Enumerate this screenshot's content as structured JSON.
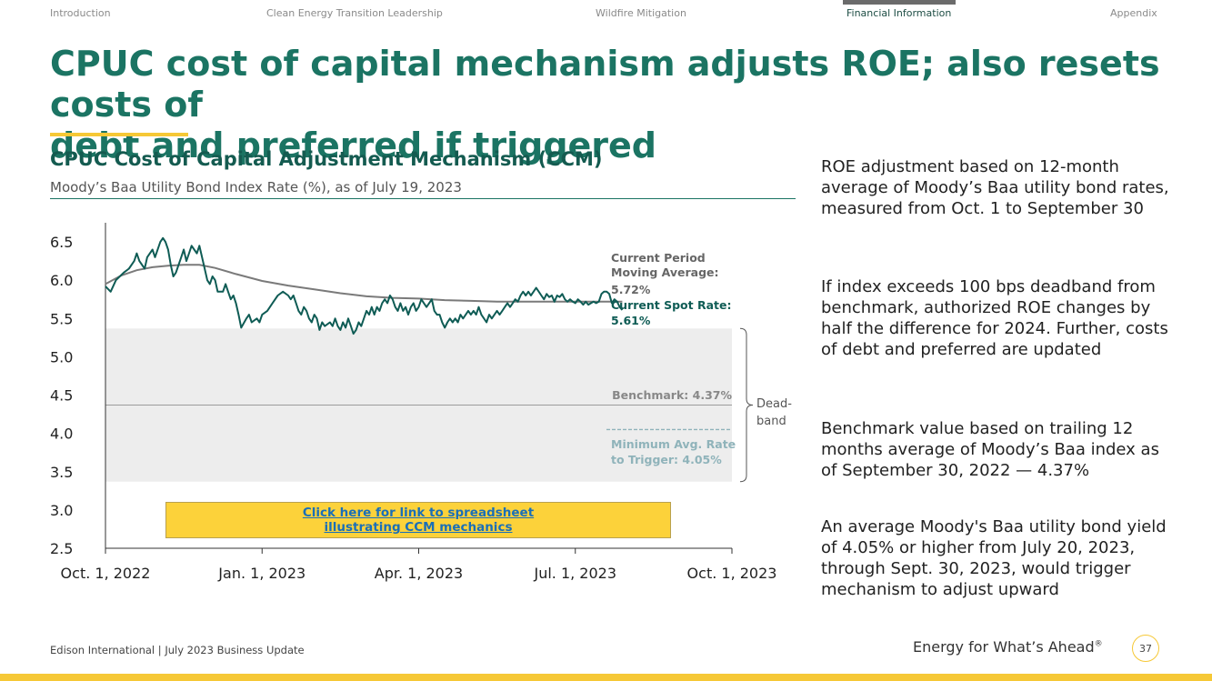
{
  "nav": {
    "items": [
      "Introduction",
      "Clean Energy Transition Leadership",
      "Wildfire Mitigation",
      "Financial Information",
      "Appendix"
    ],
    "active": "Financial Information"
  },
  "page": {
    "title_line1": "CPUC cost of capital mechanism adjusts ROE; also resets costs of",
    "title_line2": "debt and preferred if triggered"
  },
  "link_box": {
    "line1": "Click here for link to spreadsheet",
    "line2": "illustrating CCM mechanics"
  },
  "side_text": [
    "ROE adjustment based on 12-month average of Moody’s Baa utility bond rates, measured from Oct. 1 to September 30",
    "If index exceeds 100 bps deadband from benchmark, authorized ROE changes by half the difference for 2024. Further, costs of debt and preferred are updated",
    "Benchmark value based on trailing 12 months average of Moody’s Baa index as of September 30, 2022 — 4.37%",
    "An average Moody's Baa utility bond yield of 4.05% or higher from July 20, 2023, through Sept. 30, 2023, would trigger mechanism to adjust upward"
  ],
  "footer": {
    "left": "Edison International | July 2023 Business Update",
    "tagline": "Energy for What’s Ahead",
    "tagline_mark": "®",
    "page_number": "37"
  },
  "colors": {
    "title": "#1b7463",
    "spot": "#0f5c55",
    "moving_avg": "#7a7a7a",
    "deadband": "#ededed",
    "trigger": "#8fb3ba",
    "accent": "#f6c836"
  },
  "chart_data": {
    "type": "line",
    "title": "CPUC Cost of Capital Adjustment Mechanism (CCM)",
    "subtitle": "Moody’s Baa Utility Bond Index Rate (%), as of July 19, 2023",
    "ylim": [
      2.5,
      6.75
    ],
    "yticks": [
      "6.5",
      "6.0",
      "5.5",
      "5.0",
      "4.5",
      "4.0",
      "3.5",
      "3.0",
      "2.5"
    ],
    "xlim": [
      0,
      12
    ],
    "xticks": [
      {
        "x": 0,
        "label": "Oct. 1, 2022"
      },
      {
        "x": 3,
        "label": "Jan. 1, 2023"
      },
      {
        "x": 6,
        "label": "Apr. 1, 2023"
      },
      {
        "x": 9,
        "label": "Jul. 1, 2023"
      },
      {
        "x": 12,
        "label": "Oct. 1, 2023"
      }
    ],
    "x_unit": "months since Oct. 1, 2022",
    "deadband": [
      3.37,
      5.37
    ],
    "deadband_label": [
      "Dead-",
      "band"
    ],
    "benchmark": {
      "value": 4.37,
      "label": "Benchmark: 4.37%"
    },
    "trigger": {
      "value": 4.05,
      "label_line1": "Minimum Avg. Rate",
      "label_line2": "to Trigger: 4.05%"
    },
    "moving_average": {
      "label_line1": "Current Period",
      "label_line2": "Moving Average:",
      "value_label": "5.72%"
    },
    "spot_rate": {
      "label": "Current Spot Rate:",
      "value_label": "5.61%"
    },
    "series": [
      {
        "name": "Current Spot Rate",
        "points": [
          [
            0,
            5.92
          ],
          [
            0.1,
            5.85
          ],
          [
            0.2,
            6.0
          ],
          [
            0.35,
            6.1
          ],
          [
            0.45,
            6.15
          ],
          [
            0.55,
            6.25
          ],
          [
            0.6,
            6.35
          ],
          [
            0.65,
            6.25
          ],
          [
            0.75,
            6.15
          ],
          [
            0.8,
            6.3
          ],
          [
            0.9,
            6.4
          ],
          [
            0.95,
            6.3
          ],
          [
            1.05,
            6.5
          ],
          [
            1.1,
            6.55
          ],
          [
            1.15,
            6.5
          ],
          [
            1.2,
            6.4
          ],
          [
            1.25,
            6.2
          ],
          [
            1.3,
            6.05
          ],
          [
            1.35,
            6.1
          ],
          [
            1.45,
            6.3
          ],
          [
            1.5,
            6.4
          ],
          [
            1.55,
            6.25
          ],
          [
            1.6,
            6.35
          ],
          [
            1.65,
            6.45
          ],
          [
            1.7,
            6.4
          ],
          [
            1.75,
            6.35
          ],
          [
            1.8,
            6.45
          ],
          [
            1.85,
            6.3
          ],
          [
            1.9,
            6.15
          ],
          [
            1.95,
            6.0
          ],
          [
            2.0,
            5.95
          ],
          [
            2.05,
            6.05
          ],
          [
            2.1,
            6.0
          ],
          [
            2.15,
            5.85
          ],
          [
            2.25,
            5.85
          ],
          [
            2.3,
            5.95
          ],
          [
            2.35,
            5.85
          ],
          [
            2.4,
            5.75
          ],
          [
            2.45,
            5.8
          ],
          [
            2.5,
            5.7
          ],
          [
            2.55,
            5.55
          ],
          [
            2.6,
            5.38
          ],
          [
            2.7,
            5.5
          ],
          [
            2.75,
            5.55
          ],
          [
            2.8,
            5.45
          ],
          [
            2.9,
            5.5
          ],
          [
            2.95,
            5.45
          ],
          [
            3.0,
            5.55
          ],
          [
            3.1,
            5.6
          ],
          [
            3.2,
            5.7
          ],
          [
            3.3,
            5.8
          ],
          [
            3.4,
            5.85
          ],
          [
            3.5,
            5.8
          ],
          [
            3.55,
            5.75
          ],
          [
            3.6,
            5.8
          ],
          [
            3.65,
            5.7
          ],
          [
            3.7,
            5.6
          ],
          [
            3.75,
            5.55
          ],
          [
            3.8,
            5.65
          ],
          [
            3.85,
            5.6
          ],
          [
            3.9,
            5.5
          ],
          [
            3.95,
            5.45
          ],
          [
            4.0,
            5.55
          ],
          [
            4.05,
            5.5
          ],
          [
            4.1,
            5.35
          ],
          [
            4.15,
            5.45
          ],
          [
            4.2,
            5.4
          ],
          [
            4.3,
            5.45
          ],
          [
            4.35,
            5.4
          ],
          [
            4.4,
            5.5
          ],
          [
            4.45,
            5.4
          ],
          [
            4.5,
            5.35
          ],
          [
            4.55,
            5.45
          ],
          [
            4.6,
            5.38
          ],
          [
            4.65,
            5.5
          ],
          [
            4.7,
            5.4
          ],
          [
            4.75,
            5.3
          ],
          [
            4.8,
            5.35
          ],
          [
            4.85,
            5.45
          ],
          [
            4.9,
            5.4
          ],
          [
            4.95,
            5.5
          ],
          [
            5.0,
            5.6
          ],
          [
            5.05,
            5.55
          ],
          [
            5.1,
            5.65
          ],
          [
            5.15,
            5.55
          ],
          [
            5.2,
            5.65
          ],
          [
            5.25,
            5.6
          ],
          [
            5.3,
            5.7
          ],
          [
            5.35,
            5.75
          ],
          [
            5.4,
            5.7
          ],
          [
            5.45,
            5.8
          ],
          [
            5.5,
            5.75
          ],
          [
            5.55,
            5.65
          ],
          [
            5.6,
            5.6
          ],
          [
            5.65,
            5.7
          ],
          [
            5.7,
            5.6
          ],
          [
            5.75,
            5.65
          ],
          [
            5.8,
            5.55
          ],
          [
            5.85,
            5.65
          ],
          [
            5.9,
            5.7
          ],
          [
            5.95,
            5.6
          ],
          [
            6.0,
            5.65
          ],
          [
            6.05,
            5.75
          ],
          [
            6.1,
            5.7
          ],
          [
            6.15,
            5.65
          ],
          [
            6.2,
            5.7
          ],
          [
            6.25,
            5.75
          ],
          [
            6.3,
            5.6
          ],
          [
            6.35,
            5.55
          ],
          [
            6.4,
            5.55
          ],
          [
            6.45,
            5.45
          ],
          [
            6.5,
            5.38
          ],
          [
            6.55,
            5.45
          ],
          [
            6.6,
            5.5
          ],
          [
            6.65,
            5.45
          ],
          [
            6.7,
            5.5
          ],
          [
            6.75,
            5.45
          ],
          [
            6.8,
            5.55
          ],
          [
            6.85,
            5.5
          ],
          [
            6.9,
            5.55
          ],
          [
            6.95,
            5.6
          ],
          [
            7.0,
            5.55
          ],
          [
            7.05,
            5.6
          ],
          [
            7.1,
            5.55
          ],
          [
            7.15,
            5.65
          ],
          [
            7.2,
            5.55
          ],
          [
            7.25,
            5.5
          ],
          [
            7.3,
            5.45
          ],
          [
            7.35,
            5.55
          ],
          [
            7.4,
            5.5
          ],
          [
            7.45,
            5.55
          ],
          [
            7.5,
            5.6
          ],
          [
            7.55,
            5.55
          ],
          [
            7.6,
            5.6
          ],
          [
            7.65,
            5.65
          ],
          [
            7.7,
            5.7
          ],
          [
            7.75,
            5.65
          ],
          [
            7.8,
            5.7
          ],
          [
            7.85,
            5.75
          ],
          [
            7.9,
            5.72
          ],
          [
            7.95,
            5.8
          ],
          [
            8.0,
            5.85
          ],
          [
            8.05,
            5.8
          ],
          [
            8.1,
            5.85
          ],
          [
            8.15,
            5.8
          ],
          [
            8.2,
            5.85
          ],
          [
            8.25,
            5.9
          ],
          [
            8.3,
            5.85
          ],
          [
            8.35,
            5.8
          ],
          [
            8.4,
            5.75
          ],
          [
            8.45,
            5.82
          ],
          [
            8.5,
            5.78
          ],
          [
            8.55,
            5.8
          ],
          [
            8.6,
            5.72
          ],
          [
            8.65,
            5.8
          ],
          [
            8.7,
            5.78
          ],
          [
            8.75,
            5.82
          ],
          [
            8.8,
            5.75
          ],
          [
            8.85,
            5.72
          ],
          [
            8.9,
            5.75
          ],
          [
            8.95,
            5.72
          ],
          [
            9.0,
            5.7
          ],
          [
            9.05,
            5.75
          ],
          [
            9.1,
            5.72
          ],
          [
            9.15,
            5.68
          ],
          [
            9.2,
            5.72
          ],
          [
            9.25,
            5.68
          ],
          [
            9.3,
            5.7
          ],
          [
            9.35,
            5.72
          ],
          [
            9.4,
            5.7
          ],
          [
            9.45,
            5.72
          ],
          [
            9.5,
            5.82
          ],
          [
            9.55,
            5.85
          ],
          [
            9.6,
            5.85
          ],
          [
            9.65,
            5.82
          ],
          [
            9.7,
            5.7
          ],
          [
            9.75,
            5.75
          ],
          [
            9.8,
            5.72
          ],
          [
            9.85,
            5.65
          ],
          [
            9.9,
            5.61
          ]
        ]
      },
      {
        "name": "Current Period Moving Average",
        "points": [
          [
            0,
            5.95
          ],
          [
            0.3,
            6.06
          ],
          [
            0.6,
            6.13
          ],
          [
            0.9,
            6.17
          ],
          [
            1.2,
            6.19
          ],
          [
            1.5,
            6.2
          ],
          [
            1.8,
            6.2
          ],
          [
            2.1,
            6.16
          ],
          [
            2.5,
            6.08
          ],
          [
            3.0,
            5.99
          ],
          [
            3.5,
            5.93
          ],
          [
            4.0,
            5.88
          ],
          [
            4.5,
            5.83
          ],
          [
            5.0,
            5.79
          ],
          [
            5.5,
            5.77
          ],
          [
            6.0,
            5.76
          ],
          [
            6.5,
            5.74
          ],
          [
            7.0,
            5.73
          ],
          [
            7.5,
            5.72
          ],
          [
            8.0,
            5.72
          ],
          [
            8.5,
            5.72
          ],
          [
            9.0,
            5.72
          ],
          [
            9.5,
            5.72
          ],
          [
            9.9,
            5.72
          ]
        ]
      }
    ]
  }
}
